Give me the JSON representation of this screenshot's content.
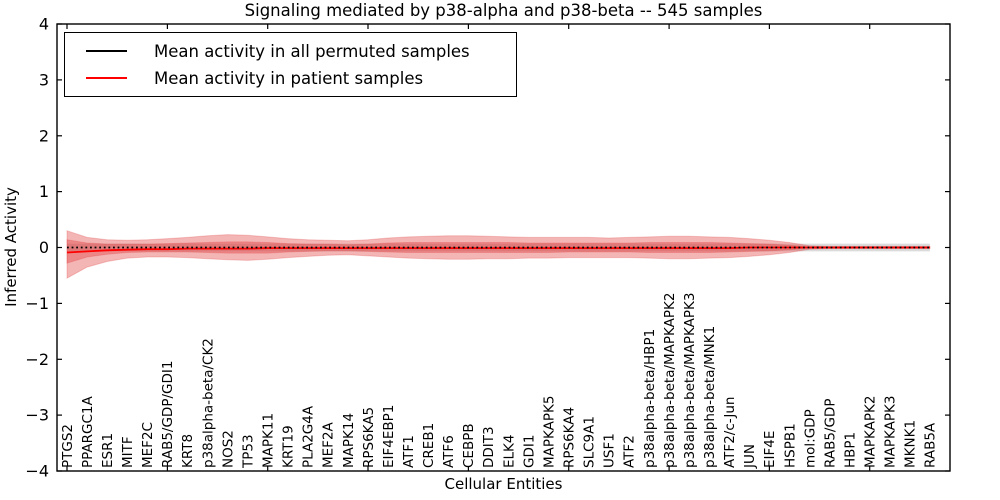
{
  "figure": {
    "background": "#ffffff"
  },
  "legend": {
    "entries": [
      {
        "label": "Mean activity in all permuted samples",
        "color": "#000000"
      },
      {
        "label": "Mean activity in patient samples",
        "color": "#ff0000"
      }
    ]
  },
  "chart_data": {
    "type": "line",
    "title": "Signaling mediated by p38-alpha and p38-beta -- 545 samples",
    "xlabel": "Cellular Entities",
    "ylabel": "Inferred Activity",
    "ylim": [
      -4,
      4
    ],
    "yticks": [
      -4,
      -3,
      -2,
      -1,
      0,
      1,
      2,
      3,
      4
    ],
    "xtick_rotation": 90,
    "xtick_step_major": 5,
    "grid": false,
    "legend_position": "upper left",
    "categories": [
      "PTGS2",
      "PPARGC1A",
      "ESR1",
      "MITF",
      "MEF2C",
      "RAB5/GDP/GDI1",
      "KRT8",
      "p38alpha-beta/CK2",
      "NOS2",
      "TP53",
      "MAPK11",
      "KRT19",
      "PLA2G4A",
      "MEF2A",
      "MAPK14",
      "RPS6KA5",
      "EIF4EBP1",
      "ATF1",
      "CREB1",
      "ATF6",
      "CEBPB",
      "DDIT3",
      "ELK4",
      "GDI1",
      "MAPKAPK5",
      "RPS6KA4",
      "SLC9A1",
      "USF1",
      "ATF2",
      "p38alpha-beta/HBP1",
      "p38alpha-beta/MAPKAPK2",
      "p38alpha-beta/MAPKAPK3",
      "p38alpha-beta/MNK1",
      "ATF2/c-Jun",
      "JUN",
      "EIF4E",
      "HSPB1",
      "mol:GDP",
      "RAB5/GDP",
      "HBP1",
      "MAPKAPK2",
      "MAPKAPK3",
      "MKNK1",
      "RAB5A"
    ],
    "series": [
      {
        "name": "Mean activity in all permuted samples",
        "color": "#000000",
        "style": "dotted",
        "values": [
          0,
          0,
          0,
          0,
          0,
          0,
          0,
          0,
          0,
          0,
          0,
          0,
          0,
          0,
          0,
          0,
          0,
          0,
          0,
          0,
          0,
          0,
          0,
          0,
          0,
          0,
          0,
          0,
          0,
          0,
          0,
          0,
          0,
          0,
          0,
          0,
          0,
          0,
          0,
          0,
          0,
          0,
          0,
          0
        ]
      },
      {
        "name": "Mean activity in patient samples",
        "color": "#ff0000",
        "style": "solid",
        "values": [
          -0.09,
          -0.07,
          -0.05,
          -0.04,
          -0.03,
          -0.03,
          -0.02,
          -0.02,
          -0.02,
          -0.02,
          -0.01,
          -0.01,
          -0.01,
          -0.01,
          -0.01,
          -0.01,
          -0.01,
          -0.01,
          -0.01,
          -0.01,
          -0.01,
          -0.01,
          -0.01,
          -0.01,
          -0.01,
          -0.01,
          -0.01,
          -0.01,
          -0.01,
          -0.01,
          -0.01,
          -0.01,
          -0.01,
          -0.01,
          0,
          0,
          0,
          0,
          0,
          0,
          0,
          0,
          0,
          0
        ]
      }
    ],
    "bands": [
      {
        "name": "permuted-samples-std",
        "color": "#bdbdbd",
        "opacity": 0.55,
        "halfwidth": 0.07
      },
      {
        "name": "patient-samples-outer-band",
        "color": "#e13c3c",
        "opacity": 0.38,
        "upper": [
          0.3,
          0.18,
          0.14,
          0.13,
          0.14,
          0.16,
          0.18,
          0.21,
          0.23,
          0.22,
          0.19,
          0.16,
          0.14,
          0.13,
          0.12,
          0.14,
          0.17,
          0.19,
          0.2,
          0.21,
          0.21,
          0.2,
          0.19,
          0.18,
          0.18,
          0.18,
          0.18,
          0.17,
          0.18,
          0.19,
          0.2,
          0.2,
          0.19,
          0.18,
          0.16,
          0.13,
          0.09,
          0.03,
          0.02,
          0.02,
          0.02,
          0.02,
          0.02,
          0.02
        ],
        "lower": [
          -0.55,
          -0.35,
          -0.25,
          -0.19,
          -0.17,
          -0.17,
          -0.18,
          -0.2,
          -0.22,
          -0.23,
          -0.21,
          -0.18,
          -0.16,
          -0.14,
          -0.13,
          -0.15,
          -0.17,
          -0.19,
          -0.2,
          -0.21,
          -0.21,
          -0.2,
          -0.2,
          -0.19,
          -0.19,
          -0.18,
          -0.18,
          -0.18,
          -0.18,
          -0.19,
          -0.2,
          -0.2,
          -0.19,
          -0.18,
          -0.16,
          -0.13,
          -0.09,
          -0.03,
          -0.02,
          -0.02,
          -0.02,
          -0.02,
          -0.02,
          -0.02
        ]
      },
      {
        "name": "patient-samples-inner-band",
        "color": "#e13c3c",
        "opacity": 0.38,
        "upper": [
          0.14,
          0.08,
          0.06,
          0.06,
          0.06,
          0.07,
          0.08,
          0.09,
          0.1,
          0.1,
          0.09,
          0.07,
          0.06,
          0.06,
          0.05,
          0.06,
          0.08,
          0.09,
          0.09,
          0.09,
          0.09,
          0.09,
          0.09,
          0.08,
          0.08,
          0.08,
          0.08,
          0.08,
          0.08,
          0.09,
          0.09,
          0.09,
          0.09,
          0.08,
          0.07,
          0.06,
          0.04,
          0.01,
          0.01,
          0.01,
          0.01,
          0.01,
          0.01,
          0.01
        ],
        "lower": [
          -0.28,
          -0.17,
          -0.12,
          -0.09,
          -0.08,
          -0.08,
          -0.08,
          -0.09,
          -0.1,
          -0.1,
          -0.1,
          -0.08,
          -0.07,
          -0.06,
          -0.06,
          -0.07,
          -0.08,
          -0.09,
          -0.09,
          -0.09,
          -0.09,
          -0.09,
          -0.09,
          -0.09,
          -0.09,
          -0.08,
          -0.08,
          -0.08,
          -0.08,
          -0.09,
          -0.09,
          -0.09,
          -0.09,
          -0.08,
          -0.07,
          -0.06,
          -0.04,
          -0.01,
          -0.01,
          -0.01,
          -0.01,
          -0.01,
          -0.01,
          -0.01
        ]
      }
    ]
  }
}
